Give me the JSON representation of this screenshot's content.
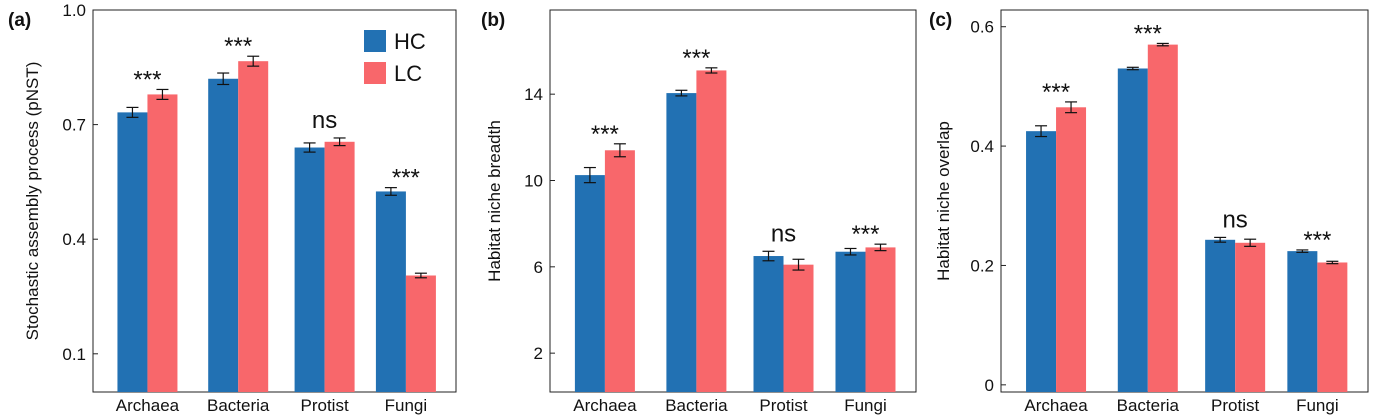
{
  "colors": {
    "HC": "#2271b3",
    "LC": "#f8676b"
  },
  "legend": [
    {
      "label": "HC",
      "color": "#2271b3"
    },
    {
      "label": "LC",
      "color": "#f8676b"
    }
  ],
  "chart_data": [
    {
      "type": "bar",
      "panel_label": "(a)",
      "ylabel": "Stochastic assembly process (pNST)",
      "categories": [
        "Archaea",
        "Bacteria",
        "Protist",
        "Fungi"
      ],
      "yticks": [
        "0.1",
        "0.4",
        "0.7",
        "1.0"
      ],
      "ytick_values": [
        0.1,
        0.4,
        0.7,
        1.0
      ],
      "ylim": [
        0.0,
        1.0
      ],
      "series": [
        {
          "name": "HC",
          "values": [
            0.732,
            0.82,
            0.64,
            0.525
          ],
          "errors": [
            0.013,
            0.015,
            0.012,
            0.01
          ]
        },
        {
          "name": "LC",
          "values": [
            0.779,
            0.866,
            0.655,
            0.305
          ],
          "errors": [
            0.013,
            0.013,
            0.01,
            0.006
          ]
        }
      ],
      "significance": [
        "***",
        "***",
        "ns",
        "***"
      ],
      "legend_position": "top-right"
    },
    {
      "type": "bar",
      "panel_label": "(b)",
      "ylabel": "Habitat niche breadth",
      "categories": [
        "Archaea",
        "Bacteria",
        "Protist",
        "Fungi"
      ],
      "yticks": [
        "2",
        "6",
        "10",
        "14"
      ],
      "ytick_values": [
        2,
        6,
        10,
        14
      ],
      "ylim": [
        0.2,
        17.9
      ],
      "series": [
        {
          "name": "HC",
          "values": [
            10.25,
            14.05,
            6.5,
            6.7
          ],
          "errors": [
            0.35,
            0.13,
            0.22,
            0.15
          ]
        },
        {
          "name": "LC",
          "values": [
            11.4,
            15.1,
            6.1,
            6.9
          ],
          "errors": [
            0.3,
            0.12,
            0.25,
            0.15
          ]
        }
      ],
      "significance": [
        "***",
        "***",
        "ns",
        "***"
      ]
    },
    {
      "type": "bar",
      "panel_label": "(c)",
      "ylabel": "Habitat niche overlap",
      "categories": [
        "Archaea",
        "Bacteria",
        "Protist",
        "Fungi"
      ],
      "yticks": [
        "0",
        "0.2",
        "0.4",
        "0.6"
      ],
      "ytick_values": [
        0,
        0.2,
        0.4,
        0.6
      ],
      "ylim": [
        -0.012,
        0.628
      ],
      "series": [
        {
          "name": "HC",
          "values": [
            0.425,
            0.53,
            0.243,
            0.224
          ],
          "errors": [
            0.009,
            0.002,
            0.004,
            0.002
          ]
        },
        {
          "name": "LC",
          "values": [
            0.465,
            0.57,
            0.238,
            0.205
          ],
          "errors": [
            0.009,
            0.002,
            0.006,
            0.002
          ]
        }
      ],
      "significance": [
        "***",
        "***",
        "ns",
        "***"
      ]
    }
  ]
}
